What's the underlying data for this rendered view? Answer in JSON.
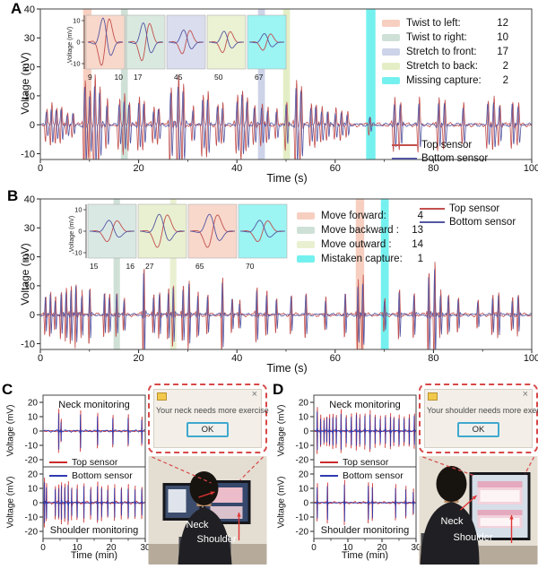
{
  "panels": {
    "a": {
      "label": "A",
      "xlabel": "Time (s)",
      "ylabel": "Voltage (mV)",
      "event_legend": [
        {
          "label": "Twist to left:",
          "count": "12",
          "color": "#f7cfc0"
        },
        {
          "label": "Twist to right:",
          "count": "10",
          "color": "#cfe1d7"
        },
        {
          "label": "Stretch to front:",
          "count": "17",
          "color": "#cdd3e8"
        },
        {
          "label": "Stretch to back:",
          "count": "2",
          "color": "#e4eec6"
        },
        {
          "label": "Missing capture:",
          "count": "2",
          "color": "#74f1ef"
        }
      ],
      "line_legend": [
        {
          "label": "Top sensor",
          "color": "#c2504e"
        },
        {
          "label": "Bottom sensor",
          "color": "#5456a2"
        }
      ],
      "inset": {
        "ylabel": "Voltage (mV)",
        "yticks": [
          10,
          0,
          -10
        ],
        "boxes": [
          {
            "color": "#f8d8cb",
            "labels": [
              "9",
              "10"
            ],
            "amp": 10
          },
          {
            "color": "#d9e9df",
            "labels": [
              "17"
            ],
            "amp": 8
          },
          {
            "color": "#d9ddee",
            "labels": [
              "45"
            ],
            "amp": 5
          },
          {
            "color": "#ebf1d3",
            "labels": [
              "50"
            ],
            "amp": 4.5
          },
          {
            "color": "#9cf4f3",
            "labels": [
              "67"
            ],
            "amp": 3.5
          }
        ]
      }
    },
    "b": {
      "label": "B",
      "xlabel": "Time (s)",
      "ylabel": "Voltage (mV)",
      "event_legend": [
        {
          "label": "Move forward:",
          "count": "4",
          "color": "#f7cfc0"
        },
        {
          "label": "Move backward :",
          "count": "13",
          "color": "#cfe1d7"
        },
        {
          "label": "Move outward :",
          "count": "14",
          "color": "#e9f0d1"
        },
        {
          "label": "Mistaken capture:",
          "count": "1",
          "color": "#74f1ef"
        }
      ],
      "line_legend": [
        {
          "label": "Top sensor",
          "color": "#c2504e"
        },
        {
          "label": "Bottom sensor",
          "color": "#5456a2"
        }
      ],
      "inset": {
        "ylabel": "Voltage (mV)",
        "yticks": [
          10,
          0,
          -10
        ],
        "boxes": [
          {
            "color": "#d9e8e3",
            "labels": [
              "15",
              "16"
            ],
            "amp": 4.5
          },
          {
            "color": "#e9f0d1",
            "labels": [
              "27"
            ],
            "amp": 7
          },
          {
            "color": "#f8d8cb",
            "labels": [
              "65"
            ],
            "amp": 7
          },
          {
            "color": "#9cf4f3",
            "labels": [
              "70"
            ],
            "amp": 4.5
          }
        ]
      }
    },
    "c": {
      "label": "C",
      "neck_title": "Neck monitoring",
      "shoulder_title": "Shoulder monitoring",
      "xlabel": "Time (min)",
      "ylabel": "Voltage (mV)",
      "line_legend": [
        {
          "label": "Top sensor",
          "color": "#cc2a2a"
        },
        {
          "label": "Bottom sensor",
          "color": "#2f3ab0"
        }
      ],
      "popup": {
        "message": "Your neck needs more exercise",
        "ok": "OK",
        "close": "×"
      },
      "photo_labels": {
        "neck": "Neck",
        "shoulder": "Shoulder"
      }
    },
    "d": {
      "label": "D",
      "neck_title": "Neck monitoring",
      "shoulder_title": "Shoulder monitoring",
      "xlabel": "Time (min)",
      "ylabel": "Voltage (mV)",
      "line_legend": [
        {
          "label": "Top sensor",
          "color": "#cc2a2a"
        },
        {
          "label": "Bottom sensor",
          "color": "#2f3ab0"
        }
      ],
      "popup": {
        "message": "Your shoulder needs more exercise",
        "ok": "OK",
        "close": "×"
      },
      "photo_labels": {
        "neck": "Neck",
        "shoulder": "Shoulder"
      }
    }
  },
  "chart_data": {
    "panelA": {
      "type": "line",
      "xlabel": "Time (s)",
      "ylabel": "Voltage (mV)",
      "xlim": [
        0,
        100
      ],
      "ylim": [
        -12,
        40
      ],
      "xticks": [
        0,
        20,
        40,
        60,
        80,
        100
      ],
      "yticks": [
        40,
        30,
        20,
        10,
        0,
        -10
      ],
      "series": [
        {
          "name": "Top sensor",
          "color": "#c2504e"
        },
        {
          "name": "Bottom sensor",
          "color": "#5456a2"
        }
      ],
      "events": [
        {
          "name": "Twist to left",
          "count": 12,
          "time": [
            8.7,
            10.4
          ],
          "color": "#f7cfc0"
        },
        {
          "name": "Twist to right",
          "count": 10,
          "time": [
            16.4,
            17.8
          ],
          "color": "#cfe1d7"
        },
        {
          "name": "Stretch to front",
          "count": 17,
          "time": [
            44.3,
            45.7
          ],
          "color": "#cdd3e8"
        },
        {
          "name": "Stretch to back",
          "count": 2,
          "time": [
            49.4,
            50.8
          ],
          "color": "#e4eec6"
        },
        {
          "name": "Missing capture",
          "count": 2,
          "time": [
            66.3,
            68.2
          ],
          "color": "#74f1ef"
        }
      ],
      "inset_event_times": [
        9,
        10,
        17,
        45,
        50,
        67
      ],
      "spikes": [
        [
          1.2,
          5
        ],
        [
          2.2,
          7
        ],
        [
          3.2,
          6
        ],
        [
          4.2,
          6
        ],
        [
          5.4,
          4
        ],
        [
          6.6,
          4
        ],
        [
          9,
          15
        ],
        [
          10,
          11
        ],
        [
          11,
          16
        ],
        [
          12,
          13
        ],
        [
          13.5,
          8
        ],
        [
          16,
          8
        ],
        [
          17,
          10
        ],
        [
          18,
          8
        ],
        [
          20,
          9
        ],
        [
          21,
          8
        ],
        [
          23,
          6
        ],
        [
          24,
          6
        ],
        [
          26.5,
          13
        ],
        [
          28,
          16
        ],
        [
          29,
          14
        ],
        [
          31,
          6
        ],
        [
          33,
          10
        ],
        [
          34,
          11
        ],
        [
          36,
          7
        ],
        [
          37,
          7
        ],
        [
          40,
          10
        ],
        [
          41,
          12
        ],
        [
          42,
          9
        ],
        [
          43.5,
          7
        ],
        [
          45,
          7
        ],
        [
          46.2,
          6
        ],
        [
          48,
          5
        ],
        [
          50,
          8
        ],
        [
          52,
          15
        ],
        [
          53,
          13
        ],
        [
          55,
          7
        ],
        [
          56,
          7
        ],
        [
          57.2,
          6
        ],
        [
          58.4,
          5
        ],
        [
          60,
          5
        ],
        [
          61.2,
          5
        ],
        [
          62.4,
          4
        ],
        [
          67,
          3
        ],
        [
          72,
          9
        ],
        [
          73.2,
          8
        ],
        [
          77,
          9
        ],
        [
          81,
          9
        ],
        [
          82.2,
          8
        ],
        [
          86,
          7
        ],
        [
          91,
          8
        ],
        [
          92.2,
          9
        ],
        [
          93.4,
          7
        ],
        [
          96,
          8
        ],
        [
          97.2,
          7
        ]
      ]
    },
    "panelB": {
      "type": "line",
      "xlabel": "Time (s)",
      "ylabel": "Voltage (mV)",
      "xlim": [
        0,
        100
      ],
      "ylim": [
        -12,
        40
      ],
      "xticks": [
        0,
        20,
        40,
        60,
        80,
        100
      ],
      "yticks": [
        40,
        30,
        20,
        10,
        0,
        -10
      ],
      "series": [
        {
          "name": "Top sensor",
          "color": "#c2504e"
        },
        {
          "name": "Bottom sensor",
          "color": "#5456a2"
        }
      ],
      "events": [
        {
          "name": "Move backward",
          "count": 13,
          "time": [
            14.9,
            16.2
          ],
          "color": "#cfe1d7"
        },
        {
          "name": "Move outward",
          "count": 14,
          "time": [
            26.4,
            27.7
          ],
          "color": "#e9f0d1"
        },
        {
          "name": "Move forward",
          "count": 4,
          "time": [
            64.2,
            65.9
          ],
          "color": "#f7cfc0"
        },
        {
          "name": "Mistaken capture",
          "count": 1,
          "time": [
            69.3,
            70.9
          ],
          "color": "#74f1ef"
        }
      ],
      "inset_event_times": [
        15,
        16,
        27,
        65,
        70
      ],
      "spikes": [
        [
          1,
          7
        ],
        [
          2,
          8
        ],
        [
          3,
          6
        ],
        [
          4.2,
          8
        ],
        [
          5.2,
          9
        ],
        [
          6.2,
          10
        ],
        [
          7.2,
          11
        ],
        [
          8.4,
          8
        ],
        [
          10,
          10
        ],
        [
          13,
          8
        ],
        [
          14,
          7
        ],
        [
          15.5,
          8
        ],
        [
          17,
          6
        ],
        [
          21,
          17
        ],
        [
          23,
          7
        ],
        [
          24.2,
          8
        ],
        [
          26,
          9
        ],
        [
          27,
          11
        ],
        [
          29,
          10
        ],
        [
          30.2,
          12
        ],
        [
          32,
          8
        ],
        [
          34,
          7
        ],
        [
          37,
          13
        ],
        [
          39,
          6
        ],
        [
          40.5,
          5
        ],
        [
          44,
          10
        ],
        [
          46,
          8
        ],
        [
          48,
          6
        ],
        [
          51,
          7
        ],
        [
          54,
          8
        ],
        [
          58,
          6
        ],
        [
          62,
          8
        ],
        [
          64.6,
          12
        ],
        [
          65.6,
          13
        ],
        [
          70,
          6
        ],
        [
          73,
          9
        ],
        [
          76,
          8
        ],
        [
          79,
          15
        ],
        [
          80.2,
          18
        ],
        [
          81.4,
          8
        ],
        [
          83,
          7
        ],
        [
          85,
          6
        ],
        [
          89,
          5
        ],
        [
          92,
          7
        ],
        [
          93.2,
          8
        ],
        [
          96,
          6
        ],
        [
          97.2,
          7
        ]
      ]
    },
    "panelC_neck": {
      "type": "line",
      "title": "Neck monitoring",
      "xlabel": "Time (min)",
      "ylabel": "Voltage (mV)",
      "xlim": [
        0,
        30
      ],
      "ylim": [
        -25,
        25
      ],
      "xticks": [
        0,
        10,
        20,
        30
      ],
      "yticks": [
        20,
        10,
        0,
        -10,
        -20
      ],
      "series": [
        {
          "name": "Top sensor",
          "color": "#cc2a2a"
        },
        {
          "name": "Bottom sensor",
          "color": "#2f3ab0"
        }
      ],
      "spikes": [
        [
          4.6,
          15
        ],
        [
          5.3,
          8
        ],
        [
          11,
          14
        ],
        [
          16,
          12
        ],
        [
          20.5,
          11
        ],
        [
          25,
          11
        ],
        [
          29,
          10
        ]
      ]
    },
    "panelC_shoulder": {
      "type": "line",
      "title": "Shoulder monitoring",
      "xlabel": "Time (min)",
      "ylabel": "Voltage (mV)",
      "xlim": [
        0,
        30
      ],
      "ylim": [
        -25,
        25
      ],
      "xticks": [
        0,
        10,
        20,
        30
      ],
      "yticks": [
        20,
        10,
        0,
        -10,
        -20
      ],
      "series": [
        {
          "name": "Top sensor",
          "color": "#cc2a2a"
        },
        {
          "name": "Bottom sensor",
          "color": "#2f3ab0"
        }
      ],
      "spikes": [
        [
          0.4,
          17
        ],
        [
          1,
          13
        ],
        [
          3.6,
          11
        ],
        [
          4.6,
          12
        ],
        [
          5.4,
          14
        ],
        [
          6.4,
          13
        ],
        [
          7.4,
          15
        ],
        [
          8.4,
          11
        ],
        [
          10,
          12
        ],
        [
          12,
          13
        ],
        [
          14,
          11
        ],
        [
          16,
          14
        ],
        [
          17.2,
          12
        ],
        [
          19,
          11
        ],
        [
          21,
          12
        ],
        [
          23,
          11
        ],
        [
          25,
          12
        ],
        [
          27,
          11
        ],
        [
          29,
          11
        ]
      ]
    },
    "panelD_neck": {
      "type": "line",
      "title": "Neck monitoring",
      "xlabel": "Time (min)",
      "ylabel": "Voltage (mV)",
      "xlim": [
        0,
        30
      ],
      "ylim": [
        -25,
        25
      ],
      "xticks": [
        0,
        10,
        20,
        30
      ],
      "yticks": [
        20,
        10,
        0,
        -10,
        -20
      ],
      "series": [
        {
          "name": "Top sensor",
          "color": "#cc2a2a"
        },
        {
          "name": "Bottom sensor",
          "color": "#2f3ab0"
        }
      ],
      "spikes": [
        [
          1,
          16
        ],
        [
          2,
          11
        ],
        [
          3,
          9
        ],
        [
          3.8,
          10
        ],
        [
          4.6,
          11
        ],
        [
          5.6,
          12
        ],
        [
          6.6,
          11
        ],
        [
          8,
          15
        ],
        [
          9.5,
          11
        ],
        [
          11,
          12
        ],
        [
          12.5,
          13
        ],
        [
          13.5,
          11
        ],
        [
          15,
          12
        ],
        [
          16.5,
          14
        ],
        [
          18,
          11
        ],
        [
          19.5,
          10
        ],
        [
          21,
          11
        ],
        [
          22.5,
          12
        ],
        [
          23.5,
          10
        ],
        [
          25,
          11
        ],
        [
          26.5,
          10
        ],
        [
          28,
          11
        ],
        [
          29.5,
          12
        ]
      ]
    },
    "panelD_shoulder": {
      "type": "line",
      "title": "Shoulder monitoring",
      "xlabel": "Time (min)",
      "ylabel": "Voltage (mV)",
      "xlim": [
        0,
        30
      ],
      "ylim": [
        -25,
        25
      ],
      "xticks": [
        0,
        10,
        20,
        30
      ],
      "yticks": [
        20,
        10,
        0,
        -10,
        -20
      ],
      "series": [
        {
          "name": "Top sensor",
          "color": "#cc2a2a"
        },
        {
          "name": "Bottom sensor",
          "color": "#2f3ab0"
        }
      ],
      "spikes": [
        [
          1,
          13
        ],
        [
          4,
          14
        ],
        [
          9,
          15
        ],
        [
          16,
          14
        ],
        [
          17.2,
          13
        ],
        [
          24,
          12
        ],
        [
          27,
          11
        ],
        [
          29.2,
          9
        ]
      ]
    }
  }
}
